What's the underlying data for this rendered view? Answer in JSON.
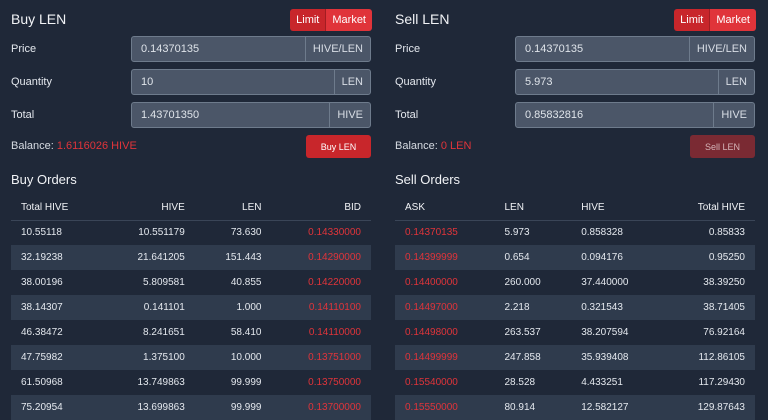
{
  "buy": {
    "title": "Buy LEN",
    "toggle": {
      "limit": "Limit",
      "market": "Market"
    },
    "price": {
      "label": "Price",
      "value": "0.14370135",
      "unit": "HIVE/LEN"
    },
    "quantity": {
      "label": "Quantity",
      "value": "10",
      "unit": "LEN"
    },
    "total": {
      "label": "Total",
      "value": "1.43701350",
      "unit": "HIVE"
    },
    "balance_label": "Balance:",
    "balance_value": "1.6116026 HIVE",
    "button": "Buy LEN"
  },
  "sell": {
    "title": "Sell LEN",
    "toggle": {
      "limit": "Limit",
      "market": "Market"
    },
    "price": {
      "label": "Price",
      "value": "0.14370135",
      "unit": "HIVE/LEN"
    },
    "quantity": {
      "label": "Quantity",
      "value": "5.973",
      "unit": "LEN"
    },
    "total": {
      "label": "Total",
      "value": "0.85832816",
      "unit": "HIVE"
    },
    "balance_label": "Balance:",
    "balance_value": "0 LEN",
    "button": "Sell LEN"
  },
  "buy_orders": {
    "title": "Buy Orders",
    "headers": [
      "Total HIVE",
      "HIVE",
      "LEN",
      "BID"
    ],
    "rows": [
      [
        "10.55118",
        "10.551179",
        "73.630",
        "0.14330000"
      ],
      [
        "32.19238",
        "21.641205",
        "151.443",
        "0.14290000"
      ],
      [
        "38.00196",
        "5.809581",
        "40.855",
        "0.14220000"
      ],
      [
        "38.14307",
        "0.141101",
        "1.000",
        "0.14110100"
      ],
      [
        "46.38472",
        "8.241651",
        "58.410",
        "0.14110000"
      ],
      [
        "47.75982",
        "1.375100",
        "10.000",
        "0.13751000"
      ],
      [
        "61.50968",
        "13.749863",
        "99.999",
        "0.13750000"
      ],
      [
        "75.20954",
        "13.699863",
        "99.999",
        "0.13700000"
      ]
    ]
  },
  "sell_orders": {
    "title": "Sell Orders",
    "headers": [
      "ASK",
      "LEN",
      "HIVE",
      "Total HIVE"
    ],
    "rows": [
      [
        "0.14370135",
        "5.973",
        "0.858328",
        "0.85833"
      ],
      [
        "0.14399999",
        "0.654",
        "0.094176",
        "0.95250"
      ],
      [
        "0.14400000",
        "260.000",
        "37.440000",
        "38.39250"
      ],
      [
        "0.14497000",
        "2.218",
        "0.321543",
        "38.71405"
      ],
      [
        "0.14498000",
        "263.537",
        "38.207594",
        "76.92164"
      ],
      [
        "0.14499999",
        "247.858",
        "35.939408",
        "112.86105"
      ],
      [
        "0.15540000",
        "28.528",
        "4.433251",
        "117.29430"
      ],
      [
        "0.15550000",
        "80.914",
        "12.582127",
        "129.87643"
      ]
    ]
  },
  "colors": {
    "background": "#1f2838",
    "accent": "#e0343a",
    "field": "#4b5668",
    "row_alt": "#2f3b4d"
  }
}
